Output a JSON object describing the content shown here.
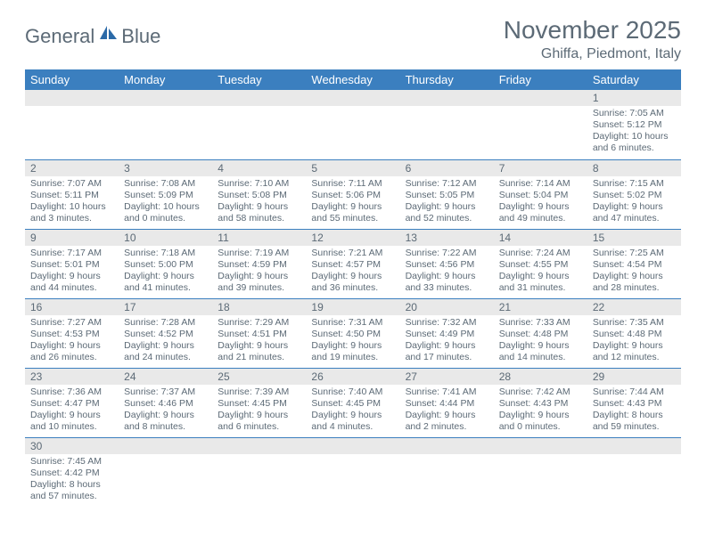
{
  "logo": {
    "part1": "General",
    "part2": "Blue"
  },
  "title": "November 2025",
  "subtitle": "Ghiffa, Piedmont, Italy",
  "colors": {
    "header_bg": "#3b7fbf",
    "header_fg": "#ffffff",
    "text": "#5c6a76",
    "daynum_bg": "#e9e9e9",
    "rule": "#3b7fbf",
    "page_bg": "#ffffff"
  },
  "fonts": {
    "title_size": 28,
    "subtitle_size": 16,
    "dow_size": 13,
    "daynum_size": 12,
    "body_size": 10.5
  },
  "dow": [
    "Sunday",
    "Monday",
    "Tuesday",
    "Wednesday",
    "Thursday",
    "Friday",
    "Saturday"
  ],
  "weeks": [
    [
      null,
      null,
      null,
      null,
      null,
      null,
      {
        "n": "1",
        "sr": "Sunrise: 7:05 AM",
        "ss": "Sunset: 5:12 PM",
        "dl": "Daylight: 10 hours and 6 minutes."
      }
    ],
    [
      {
        "n": "2",
        "sr": "Sunrise: 7:07 AM",
        "ss": "Sunset: 5:11 PM",
        "dl": "Daylight: 10 hours and 3 minutes."
      },
      {
        "n": "3",
        "sr": "Sunrise: 7:08 AM",
        "ss": "Sunset: 5:09 PM",
        "dl": "Daylight: 10 hours and 0 minutes."
      },
      {
        "n": "4",
        "sr": "Sunrise: 7:10 AM",
        "ss": "Sunset: 5:08 PM",
        "dl": "Daylight: 9 hours and 58 minutes."
      },
      {
        "n": "5",
        "sr": "Sunrise: 7:11 AM",
        "ss": "Sunset: 5:06 PM",
        "dl": "Daylight: 9 hours and 55 minutes."
      },
      {
        "n": "6",
        "sr": "Sunrise: 7:12 AM",
        "ss": "Sunset: 5:05 PM",
        "dl": "Daylight: 9 hours and 52 minutes."
      },
      {
        "n": "7",
        "sr": "Sunrise: 7:14 AM",
        "ss": "Sunset: 5:04 PM",
        "dl": "Daylight: 9 hours and 49 minutes."
      },
      {
        "n": "8",
        "sr": "Sunrise: 7:15 AM",
        "ss": "Sunset: 5:02 PM",
        "dl": "Daylight: 9 hours and 47 minutes."
      }
    ],
    [
      {
        "n": "9",
        "sr": "Sunrise: 7:17 AM",
        "ss": "Sunset: 5:01 PM",
        "dl": "Daylight: 9 hours and 44 minutes."
      },
      {
        "n": "10",
        "sr": "Sunrise: 7:18 AM",
        "ss": "Sunset: 5:00 PM",
        "dl": "Daylight: 9 hours and 41 minutes."
      },
      {
        "n": "11",
        "sr": "Sunrise: 7:19 AM",
        "ss": "Sunset: 4:59 PM",
        "dl": "Daylight: 9 hours and 39 minutes."
      },
      {
        "n": "12",
        "sr": "Sunrise: 7:21 AM",
        "ss": "Sunset: 4:57 PM",
        "dl": "Daylight: 9 hours and 36 minutes."
      },
      {
        "n": "13",
        "sr": "Sunrise: 7:22 AM",
        "ss": "Sunset: 4:56 PM",
        "dl": "Daylight: 9 hours and 33 minutes."
      },
      {
        "n": "14",
        "sr": "Sunrise: 7:24 AM",
        "ss": "Sunset: 4:55 PM",
        "dl": "Daylight: 9 hours and 31 minutes."
      },
      {
        "n": "15",
        "sr": "Sunrise: 7:25 AM",
        "ss": "Sunset: 4:54 PM",
        "dl": "Daylight: 9 hours and 28 minutes."
      }
    ],
    [
      {
        "n": "16",
        "sr": "Sunrise: 7:27 AM",
        "ss": "Sunset: 4:53 PM",
        "dl": "Daylight: 9 hours and 26 minutes."
      },
      {
        "n": "17",
        "sr": "Sunrise: 7:28 AM",
        "ss": "Sunset: 4:52 PM",
        "dl": "Daylight: 9 hours and 24 minutes."
      },
      {
        "n": "18",
        "sr": "Sunrise: 7:29 AM",
        "ss": "Sunset: 4:51 PM",
        "dl": "Daylight: 9 hours and 21 minutes."
      },
      {
        "n": "19",
        "sr": "Sunrise: 7:31 AM",
        "ss": "Sunset: 4:50 PM",
        "dl": "Daylight: 9 hours and 19 minutes."
      },
      {
        "n": "20",
        "sr": "Sunrise: 7:32 AM",
        "ss": "Sunset: 4:49 PM",
        "dl": "Daylight: 9 hours and 17 minutes."
      },
      {
        "n": "21",
        "sr": "Sunrise: 7:33 AM",
        "ss": "Sunset: 4:48 PM",
        "dl": "Daylight: 9 hours and 14 minutes."
      },
      {
        "n": "22",
        "sr": "Sunrise: 7:35 AM",
        "ss": "Sunset: 4:48 PM",
        "dl": "Daylight: 9 hours and 12 minutes."
      }
    ],
    [
      {
        "n": "23",
        "sr": "Sunrise: 7:36 AM",
        "ss": "Sunset: 4:47 PM",
        "dl": "Daylight: 9 hours and 10 minutes."
      },
      {
        "n": "24",
        "sr": "Sunrise: 7:37 AM",
        "ss": "Sunset: 4:46 PM",
        "dl": "Daylight: 9 hours and 8 minutes."
      },
      {
        "n": "25",
        "sr": "Sunrise: 7:39 AM",
        "ss": "Sunset: 4:45 PM",
        "dl": "Daylight: 9 hours and 6 minutes."
      },
      {
        "n": "26",
        "sr": "Sunrise: 7:40 AM",
        "ss": "Sunset: 4:45 PM",
        "dl": "Daylight: 9 hours and 4 minutes."
      },
      {
        "n": "27",
        "sr": "Sunrise: 7:41 AM",
        "ss": "Sunset: 4:44 PM",
        "dl": "Daylight: 9 hours and 2 minutes."
      },
      {
        "n": "28",
        "sr": "Sunrise: 7:42 AM",
        "ss": "Sunset: 4:43 PM",
        "dl": "Daylight: 9 hours and 0 minutes."
      },
      {
        "n": "29",
        "sr": "Sunrise: 7:44 AM",
        "ss": "Sunset: 4:43 PM",
        "dl": "Daylight: 8 hours and 59 minutes."
      }
    ],
    [
      {
        "n": "30",
        "sr": "Sunrise: 7:45 AM",
        "ss": "Sunset: 4:42 PM",
        "dl": "Daylight: 8 hours and 57 minutes."
      },
      null,
      null,
      null,
      null,
      null,
      null
    ]
  ]
}
